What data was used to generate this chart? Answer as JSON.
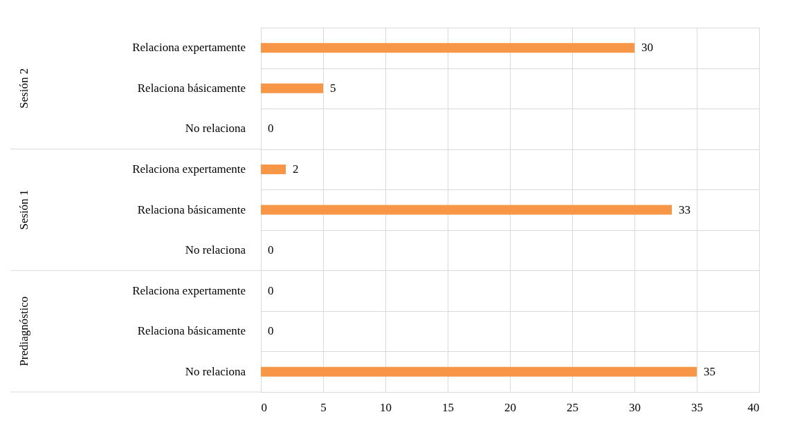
{
  "chart_data": {
    "type": "bar",
    "orientation": "horizontal",
    "categories": [
      "Relaciona expertamente",
      "Relaciona básicamente",
      "No relaciona",
      "Relaciona expertamente",
      "Relaciona básicamente",
      "No relaciona",
      "Relaciona expertamente",
      "Relaciona básicamente",
      "No relaciona"
    ],
    "values": [
      30,
      5,
      0,
      2,
      33,
      0,
      0,
      0,
      35
    ],
    "color": "#f79646",
    "xlim": [
      0,
      40
    ],
    "xticks": [
      0,
      5,
      10,
      15,
      20,
      25,
      30,
      35,
      40
    ],
    "grid": true,
    "data_labels": true,
    "annotations": [
      "Sesión 2",
      "Sesión 1",
      "Prediagnóstico"
    ]
  }
}
